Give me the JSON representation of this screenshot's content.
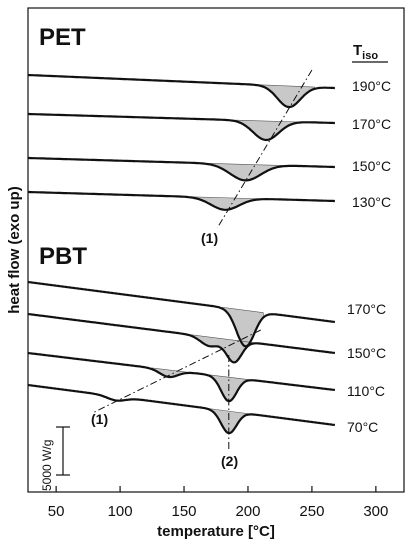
{
  "chart_data": {
    "type": "line",
    "xlabel": "temperature [°C]",
    "ylabel": "heat flow (exo up)",
    "xlim": [
      28,
      322
    ],
    "x_ticks": [
      50,
      100,
      150,
      200,
      250,
      300
    ],
    "grid": false,
    "legend_header": {
      "main": "T",
      "sub": "iso"
    },
    "scale_bar": {
      "value": 5000,
      "label": "5000 W/g"
    },
    "panels": [
      {
        "title": "PET",
        "traces": [
          {
            "label": "190°C",
            "t_iso": 190,
            "baseline_start": 0,
            "baseline_end": 0,
            "peak_center": 232,
            "peak_depth": 21,
            "peak_width": 9,
            "fill_from": 205,
            "fill_to": 252
          },
          {
            "label": "170°C",
            "t_iso": 170,
            "baseline_start": 0,
            "baseline_end": 0,
            "peak_center": 214,
            "peak_depth": 19,
            "peak_width": 10,
            "fill_from": 185,
            "fill_to": 240
          },
          {
            "label": "150°C",
            "t_iso": 150,
            "baseline_start": 0,
            "baseline_end": 0,
            "peak_center": 198,
            "peak_depth": 16,
            "peak_width": 12,
            "fill_from": 168,
            "fill_to": 230
          },
          {
            "label": "130°C",
            "t_iso": 130,
            "baseline_start": 0,
            "baseline_end": 0,
            "peak_center": 182,
            "peak_depth": 12,
            "peak_width": 11,
            "fill_from": 155,
            "fill_to": 210
          }
        ],
        "marker_line": {
          "label": "(1)",
          "points": [
            [
              232,
              0
            ],
            [
              182,
              3
            ]
          ]
        }
      },
      {
        "title": "PBT",
        "traces": [
          {
            "label": "170°C",
            "t_iso": 170,
            "peak_center": 198,
            "peak_depth": 36,
            "peak_width": 7,
            "fill_from": 180,
            "fill_to": 212
          },
          {
            "label": "150°C",
            "t_iso": 150,
            "peak_center": 189,
            "peak_depth": 22,
            "peak_width": 6,
            "secondary_peak_center": 170,
            "secondary_peak_depth": 9,
            "fill_from": 150,
            "fill_to": 205
          },
          {
            "label": "110°C",
            "t_iso": 110,
            "peak_center": 185,
            "peak_depth": 24,
            "peak_width": 6,
            "secondary_peak_center": 138,
            "secondary_peak_depth": 7,
            "fill_from": 125,
            "fill_to": 205
          },
          {
            "label": "70°C",
            "t_iso": 70,
            "peak_center": 185,
            "peak_depth": 22,
            "peak_width": 6,
            "secondary_peak_center": 97,
            "secondary_peak_depth": 4,
            "fill_from": 160,
            "fill_to": 205
          }
        ],
        "marker_lines": [
          {
            "label": "(1)",
            "points": [
              [
                180,
                0
              ],
              [
                97,
                0
              ]
            ]
          },
          {
            "label": "(2)",
            "points": [
              [
                185,
                0
              ],
              [
                185,
                0
              ]
            ]
          }
        ]
      }
    ]
  }
}
